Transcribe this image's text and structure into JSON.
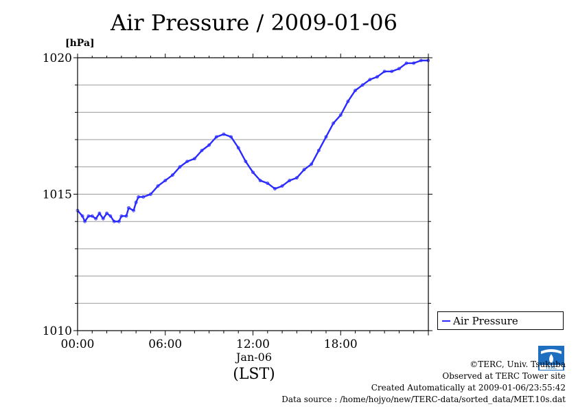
{
  "chart_data": {
    "type": "line",
    "title": "Air Pressure / 2009-01-06",
    "ylabel": "[hPa]",
    "ylim": [
      1010,
      1020
    ],
    "yticks": [
      "1010",
      "1015",
      "1020"
    ],
    "xlim": [
      "00:00",
      "24:00"
    ],
    "xticks": [
      "00:00",
      "06:00",
      "12:00",
      "18:00"
    ],
    "x_sublabel": "Jan-06",
    "x_unit": "(LST)",
    "grid": true,
    "legend_position": "right",
    "series": [
      {
        "name": "Air Pressure",
        "color": "#2a2aff",
        "points": [
          [
            "00:00",
            1014.4
          ],
          [
            "00:20",
            1014.2
          ],
          [
            "00:30",
            1014.0
          ],
          [
            "00:45",
            1014.2
          ],
          [
            "01:00",
            1014.2
          ],
          [
            "01:15",
            1014.1
          ],
          [
            "01:30",
            1014.3
          ],
          [
            "01:45",
            1014.1
          ],
          [
            "02:00",
            1014.3
          ],
          [
            "02:15",
            1014.2
          ],
          [
            "02:30",
            1014.0
          ],
          [
            "02:50",
            1014.0
          ],
          [
            "03:00",
            1014.2
          ],
          [
            "03:20",
            1014.2
          ],
          [
            "03:30",
            1014.5
          ],
          [
            "03:50",
            1014.4
          ],
          [
            "04:00",
            1014.7
          ],
          [
            "04:10",
            1014.9
          ],
          [
            "04:30",
            1014.9
          ],
          [
            "05:00",
            1015.0
          ],
          [
            "05:30",
            1015.3
          ],
          [
            "06:00",
            1015.5
          ],
          [
            "06:30",
            1015.7
          ],
          [
            "07:00",
            1016.0
          ],
          [
            "07:30",
            1016.2
          ],
          [
            "08:00",
            1016.3
          ],
          [
            "08:30",
            1016.6
          ],
          [
            "09:00",
            1016.8
          ],
          [
            "09:30",
            1017.1
          ],
          [
            "10:00",
            1017.2
          ],
          [
            "10:30",
            1017.1
          ],
          [
            "11:00",
            1016.7
          ],
          [
            "11:30",
            1016.2
          ],
          [
            "12:00",
            1015.8
          ],
          [
            "12:30",
            1015.5
          ],
          [
            "13:00",
            1015.4
          ],
          [
            "13:30",
            1015.2
          ],
          [
            "14:00",
            1015.3
          ],
          [
            "14:30",
            1015.5
          ],
          [
            "15:00",
            1015.6
          ],
          [
            "15:30",
            1015.9
          ],
          [
            "16:00",
            1016.1
          ],
          [
            "16:30",
            1016.6
          ],
          [
            "17:00",
            1017.1
          ],
          [
            "17:30",
            1017.6
          ],
          [
            "18:00",
            1017.9
          ],
          [
            "18:30",
            1018.4
          ],
          [
            "19:00",
            1018.8
          ],
          [
            "19:30",
            1019.0
          ],
          [
            "20:00",
            1019.2
          ],
          [
            "20:30",
            1019.3
          ],
          [
            "21:00",
            1019.5
          ],
          [
            "21:30",
            1019.5
          ],
          [
            "22:00",
            1019.6
          ],
          [
            "22:30",
            1019.8
          ],
          [
            "23:00",
            1019.8
          ],
          [
            "23:30",
            1019.9
          ],
          [
            "23:59",
            1019.9
          ]
        ]
      }
    ]
  },
  "credits": {
    "copyright": "©TERC, Univ. Tsukuba",
    "site": "Observed at TERC Tower site",
    "created": "Created Automatically at 2009-01-06/23:55:42",
    "source": "Data source : /home/hojyo/new/TERC-data/sorted_data/MET.10s.dat",
    "logo_text": "TERC"
  }
}
